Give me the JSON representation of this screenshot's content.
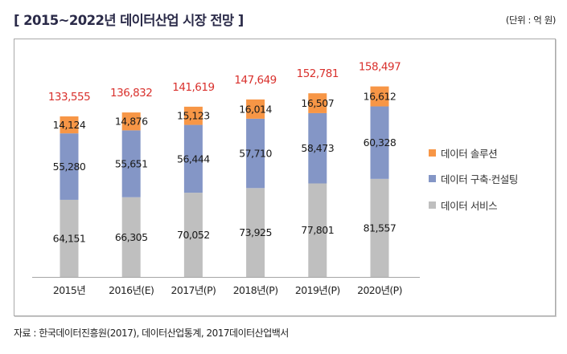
{
  "header": {
    "title": "[ 2015~2022년 데이터산업 시장 전망 ]",
    "unit": "(단위 : 억 원)"
  },
  "source": "자료 : 한국데이터진흥원(2017), 데이터산업통계, 2017데이터산업백서",
  "colors": {
    "solution": "#f79646",
    "consulting": "#8496c6",
    "service": "#bfbfbf",
    "total_label": "#d9312d",
    "axis": "#a6a6a6"
  },
  "chart_data": {
    "type": "bar",
    "stacked": true,
    "title": "[ 2015~2022년 데이터산업 시장 전망 ]",
    "unit": "억 원",
    "xlabel": "",
    "ylabel": "",
    "ylim": [
      0,
      160000
    ],
    "grid": false,
    "y_axis_visible": false,
    "legend_position": "right",
    "categories": [
      "2015년",
      "2016년(E)",
      "2017년(P)",
      "2018년(P)",
      "2019년(P)",
      "2020년(P)"
    ],
    "series": [
      {
        "name": "데이터 서비스",
        "key": "service",
        "values": [
          64151,
          66305,
          70052,
          73925,
          77801,
          81557
        ],
        "labels": [
          "64,151",
          "66,305",
          "70,052",
          "73,925",
          "77,801",
          "81,557"
        ]
      },
      {
        "name": "데이터 구축·컨설팅",
        "key": "consulting",
        "values": [
          55280,
          55651,
          56444,
          57710,
          58473,
          60328
        ],
        "labels": [
          "55,280",
          "55,651",
          "56,444",
          "57,710",
          "58,473",
          "60,328"
        ]
      },
      {
        "name": "데이터 솔루션",
        "key": "solution",
        "values": [
          14124,
          14876,
          15123,
          16014,
          16507,
          16612
        ],
        "labels": [
          "14,124",
          "14,876",
          "15,123",
          "16,014",
          "16,507",
          "16,612"
        ]
      }
    ],
    "totals": [
      133555,
      136832,
      141619,
      147649,
      152781,
      158497
    ],
    "total_labels": [
      "133,555",
      "136,832",
      "141,619",
      "147,649",
      "152,781",
      "158,497"
    ],
    "legend": [
      {
        "name": "데이터 솔루션",
        "key": "solution"
      },
      {
        "name": "데이터 구축·컨설팅",
        "key": "consulting"
      },
      {
        "name": "데이터 서비스",
        "key": "service"
      }
    ]
  }
}
